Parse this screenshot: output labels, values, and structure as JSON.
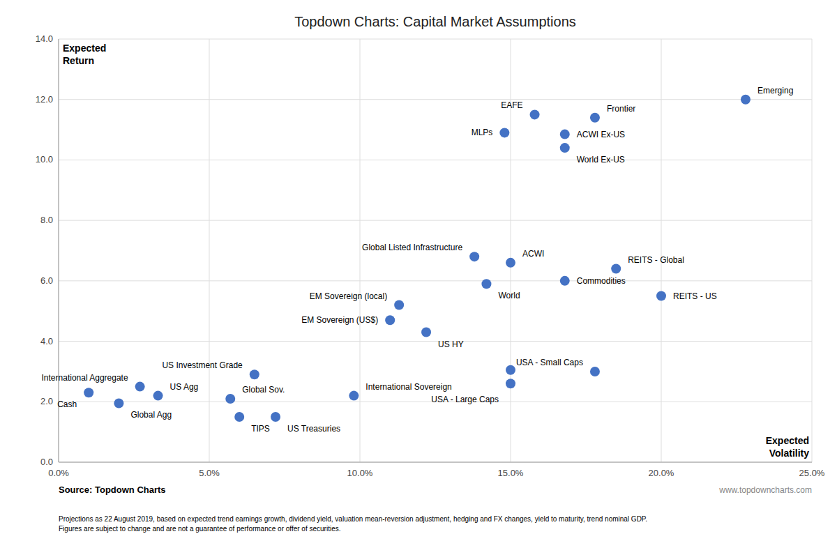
{
  "chart_data": {
    "type": "scatter",
    "title": "Topdown Charts: Capital Market Assumptions",
    "xlabel": "Expected\nVolatility",
    "ylabel": "Expected\nReturn",
    "source": "Source: Topdown Charts",
    "source_url": "www.topdowncharts.com",
    "footnote": "Projections as 22 August 2019, based on expected trend earnings growth, dividend yield, valuation mean-reversion adjustment, hedging and FX changes, yield to maturity, trend nominal GDP.\nFigures are subject to change and are not a guarantee of performance or offer of securities.",
    "color": "#4472C4",
    "grid": true,
    "xlim": [
      0.0,
      0.25
    ],
    "ylim": [
      0.0,
      14.0
    ],
    "xticks": [
      {
        "value": 0.0,
        "label": "0.0%"
      },
      {
        "value": 0.05,
        "label": "5.0%"
      },
      {
        "value": 0.1,
        "label": "10.0%"
      },
      {
        "value": 0.15,
        "label": "15.0%"
      },
      {
        "value": 0.2,
        "label": "20.0%"
      },
      {
        "value": 0.25,
        "label": "25.0%"
      }
    ],
    "yticks": [
      {
        "value": 0.0,
        "label": "0.0"
      },
      {
        "value": 2.0,
        "label": "2.0"
      },
      {
        "value": 4.0,
        "label": "4.0"
      },
      {
        "value": 6.0,
        "label": "6.0"
      },
      {
        "value": 8.0,
        "label": "8.0"
      },
      {
        "value": 10.0,
        "label": "10.0"
      },
      {
        "value": 12.0,
        "label": "12.0"
      },
      {
        "value": 14.0,
        "label": "14.0"
      }
    ],
    "point_labels": [
      "Cash",
      "Global Agg",
      "International Aggregate",
      "US Agg",
      "Global Sov.",
      "TIPS",
      "US Investment Grade",
      "US Treasuries",
      "International Sovereign",
      "EM Sovereign (US$)",
      "EM Sovereign (local)",
      "US HY",
      "Global Listed Infrastructure",
      "World",
      "ACWI",
      "MLPs",
      "USA - Large Caps",
      null,
      "Commodities",
      "EAFE",
      "ACWI Ex-US",
      "World Ex-US",
      "USA - Small Caps",
      "Frontier",
      "REITS - Global",
      "REITS - US",
      "Emerging"
    ],
    "x": [
      0.01,
      0.02,
      0.027,
      0.033,
      0.057,
      0.06,
      0.065,
      0.072,
      0.098,
      0.11,
      0.113,
      0.122,
      0.138,
      0.142,
      0.15,
      0.148,
      0.15,
      0.15,
      0.168,
      0.158,
      0.168,
      0.168,
      0.178,
      0.178,
      0.185,
      0.2,
      0.228
    ],
    "values": [
      2.3,
      1.95,
      2.5,
      2.2,
      2.1,
      1.5,
      2.9,
      1.5,
      2.2,
      4.7,
      5.2,
      4.3,
      6.8,
      5.9,
      6.6,
      10.9,
      2.6,
      3.05,
      6.0,
      11.5,
      10.85,
      10.4,
      3.0,
      11.4,
      6.4,
      5.5,
      12.0
    ]
  }
}
